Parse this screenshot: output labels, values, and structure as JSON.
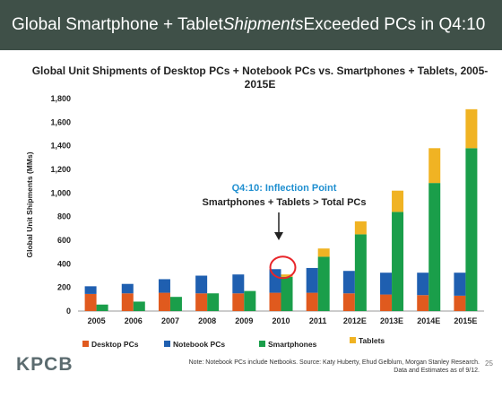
{
  "banner": {
    "title_part1": "Global Smartphone + Tablet ",
    "title_italic": "Shipments",
    "title_part2": " Exceeded PCs in Q4:10"
  },
  "chart_data": {
    "type": "bar",
    "stacked": true,
    "title": "Global Unit Shipments of Desktop PCs + Notebook PCs vs. Smartphones + Tablets, 2005-2015E",
    "ylabel": "Global Unit Shipments (MMs)",
    "xlabel": "",
    "ylim": [
      0,
      1800
    ],
    "yticks": [
      "0",
      "200",
      "400",
      "600",
      "800",
      "1,000",
      "1,200",
      "1,400",
      "1,600",
      "1,800"
    ],
    "categories": [
      "2005",
      "2006",
      "2007",
      "2008",
      "2009",
      "2010",
      "2011",
      "2012E",
      "2013E",
      "2014E",
      "2015E"
    ],
    "groups": [
      {
        "name": "pc",
        "series": [
          {
            "name": "Desktop PCs",
            "color": "#e05a1e",
            "values": [
              145,
              150,
              155,
              150,
              150,
              155,
              155,
              150,
              140,
              135,
              130
            ]
          },
          {
            "name": "Notebook PCs",
            "color": "#1f5fb0",
            "values": [
              65,
              80,
              115,
              150,
              160,
              200,
              210,
              190,
              185,
              190,
              195
            ]
          }
        ]
      },
      {
        "name": "mobile",
        "series": [
          {
            "name": "Smartphones",
            "color": "#1a9e4a",
            "values": [
              55,
              80,
              120,
              150,
              170,
              290,
              460,
              650,
              840,
              1085,
              1380
            ]
          },
          {
            "name": "Tablets",
            "color": "#f0b323",
            "values": [
              0,
              0,
              0,
              0,
              0,
              20,
              70,
              110,
              180,
              295,
              330
            ]
          }
        ]
      }
    ],
    "annotation": {
      "line1": "Q4:10: Inflection Point",
      "line2": "Smartphones + Tablets > Total PCs",
      "line1_color": "#1f8fd0",
      "circle_color": "#e8252a"
    },
    "legend_position": "bottom",
    "grid": false
  },
  "footer": {
    "logo": "KPCB",
    "note_line1": "Note: Notebook PCs include Netbooks. Source: Katy Huberty, Ehud Gelblum, Morgan Stanley Research.",
    "note_line2": "Data and Estimates as of 9/12.",
    "page_number": "25"
  }
}
